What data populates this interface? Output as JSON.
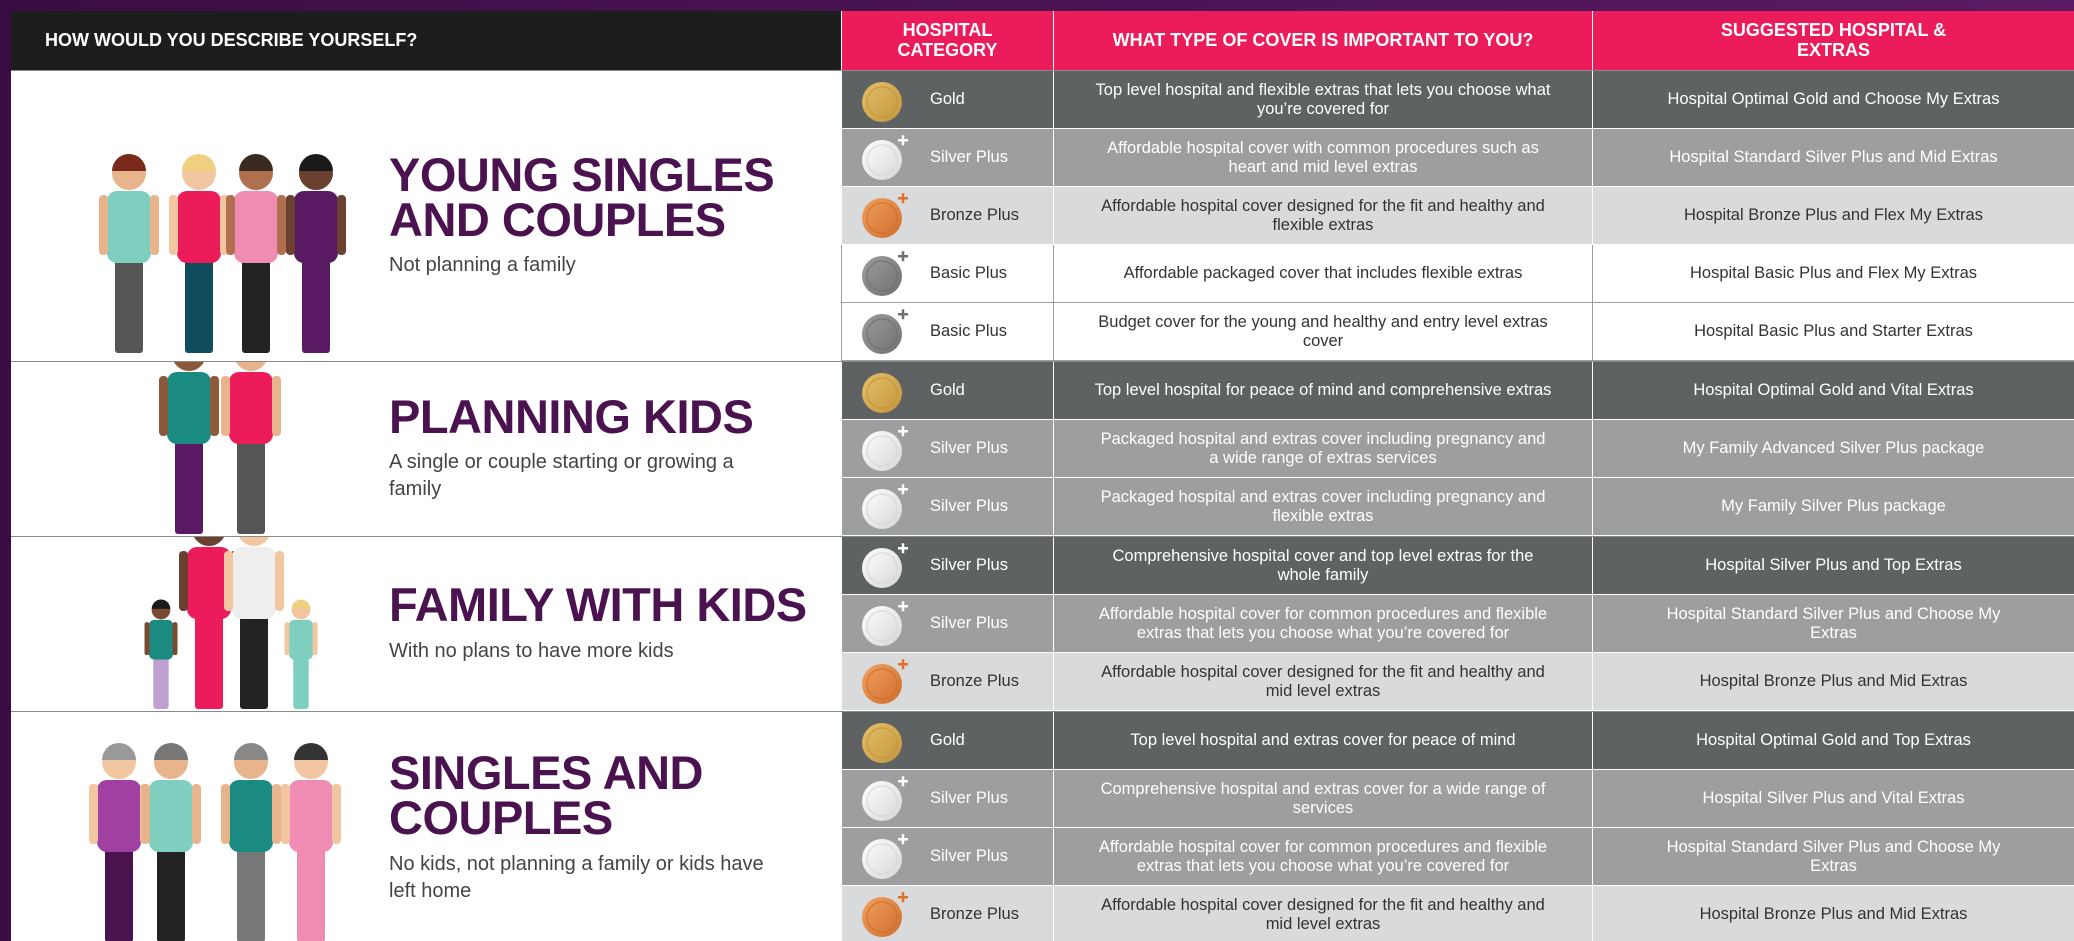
{
  "header": {
    "describe": "HOW WOULD YOU DESCRIBE YOURSELF?",
    "category": "HOSPITAL CATEGORY",
    "cover": "WHAT TYPE OF COVER IS IMPORTANT TO YOU?",
    "suggested": "SUGGESTED HOSPITAL & EXTRAS"
  },
  "groups": [
    {
      "title": "YOUNG SINGLES AND COUPLES",
      "subtitle": "Not planning a family",
      "rows": [
        {
          "category": "Gold",
          "cover": "Top level hospital and flexible extras that lets you choose what you’re covered for",
          "suggested": "Hospital Optimal Gold and Choose My Extras"
        },
        {
          "category": "Silver Plus",
          "cover": "Affordable hospital cover with common procedures such as heart and mid level extras",
          "suggested": "Hospital Standard Silver Plus and Mid Extras"
        },
        {
          "category": "Bronze Plus",
          "cover": "Affordable hospital cover designed for the fit and healthy and flexible extras",
          "suggested": "Hospital Bronze Plus and Flex My Extras"
        },
        {
          "category": "Basic Plus",
          "cover": "Affordable packaged cover that includes flexible extras",
          "suggested": "Hospital Basic Plus and Flex My Extras"
        },
        {
          "category": "Basic Plus",
          "cover": "Budget cover for the young and healthy and entry level extras cover",
          "suggested": "Hospital Basic Plus and Starter Extras"
        }
      ]
    },
    {
      "title": "PLANNING KIDS",
      "subtitle": "A single or couple starting or growing a family",
      "rows": [
        {
          "category": "Gold",
          "cover": "Top level hospital for peace of mind and comprehensive extras",
          "suggested": "Hospital Optimal Gold and Vital Extras"
        },
        {
          "category": "Silver Plus",
          "cover": "Packaged hospital and extras cover including pregnancy and a wide range of extras services",
          "suggested": "My Family Advanced Silver Plus package"
        },
        {
          "category": "Silver Plus",
          "cover": "Packaged hospital and extras cover including pregnancy and flexible extras",
          "suggested": "My Family Silver Plus package"
        }
      ]
    },
    {
      "title": "FAMILY WITH KIDS",
      "subtitle": "With no plans to have more kids",
      "rows": [
        {
          "category": "Silver Plus",
          "cover": "Comprehensive hospital cover and top level extras for the whole family",
          "suggested": "Hospital Silver Plus and Top Extras"
        },
        {
          "category": "Silver Plus",
          "cover": "Affordable hospital cover for common procedures and flexible extras that lets you choose what you’re covered for",
          "suggested": "Hospital Standard Silver Plus and Choose My Extras"
        },
        {
          "category": "Bronze Plus",
          "cover": "Affordable hospital cover designed for the fit and healthy and mid level extras",
          "suggested": "Hospital Bronze Plus and Mid Extras"
        }
      ]
    },
    {
      "title": "SINGLES AND COUPLES",
      "subtitle": "No kids, not planning a family or kids have left home",
      "rows": [
        {
          "category": "Gold",
          "cover": "Top level hospital and extras cover for peace of mind",
          "suggested": "Hospital Optimal Gold and Top Extras"
        },
        {
          "category": "Silver Plus",
          "cover": "Comprehensive hospital and extras cover for a wide range of services",
          "suggested": "Hospital Silver Plus and Vital Extras"
        },
        {
          "category": "Silver Plus",
          "cover": "Affordable hospital cover for common procedures and flexible extras that lets you choose what you’re covered for",
          "suggested": "Hospital Standard Silver Plus and Choose My Extras"
        },
        {
          "category": "Bronze Plus",
          "cover": "Affordable hospital cover designed for the fit and healthy and mid level extras",
          "suggested": "Hospital Bronze Plus and Mid Extras"
        }
      ]
    }
  ]
}
